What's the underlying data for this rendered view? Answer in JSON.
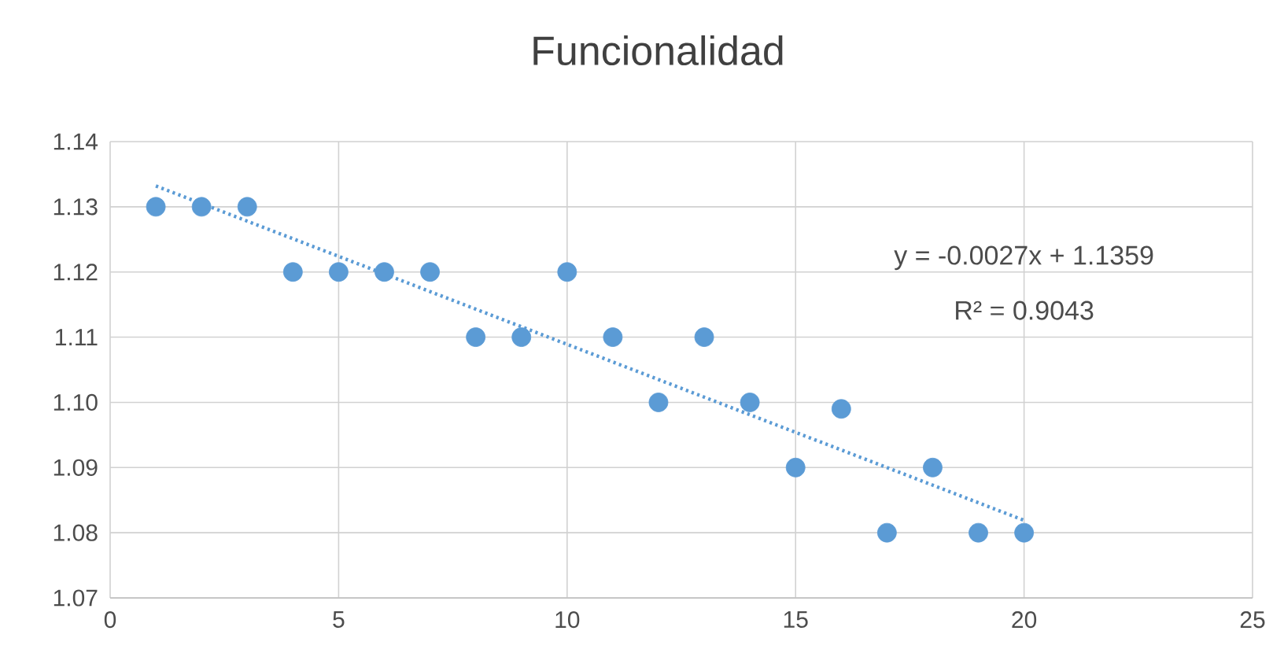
{
  "chart_data": {
    "type": "scatter",
    "title": "Funcionalidad",
    "x": [
      1,
      2,
      3,
      4,
      5,
      6,
      7,
      8,
      9,
      10,
      11,
      12,
      13,
      14,
      15,
      16,
      17,
      18,
      19,
      20
    ],
    "series": [
      {
        "color": "#5b9bd5",
        "marker": "circle",
        "values": [
          1.13,
          1.13,
          1.13,
          1.12,
          1.12,
          1.12,
          1.12,
          1.11,
          1.11,
          1.12,
          1.11,
          1.1,
          1.11,
          1.1,
          1.09,
          1.099,
          1.08,
          1.09,
          1.08,
          1.08
        ]
      },
      {
        "type": "line",
        "color": "#5b9bd5",
        "marker": "none",
        "line_style": "dotted",
        "x": [
          1,
          20
        ],
        "values": [
          1.1332,
          1.0819
        ]
      }
    ],
    "xlim": [
      0,
      25
    ],
    "xticks": [
      0,
      5,
      10,
      15,
      20,
      25
    ],
    "ylim": [
      1.07,
      1.14
    ],
    "yticks": [
      1.07,
      1.08,
      1.09,
      {
        "value": 1.1,
        "label": "1.10"
      },
      1.11,
      1.12,
      1.13,
      1.14
    ],
    "grid": true,
    "legend": false,
    "annotations": [
      "y = -0.0027x + 1.1359",
      "R² = 0.9043"
    ]
  }
}
